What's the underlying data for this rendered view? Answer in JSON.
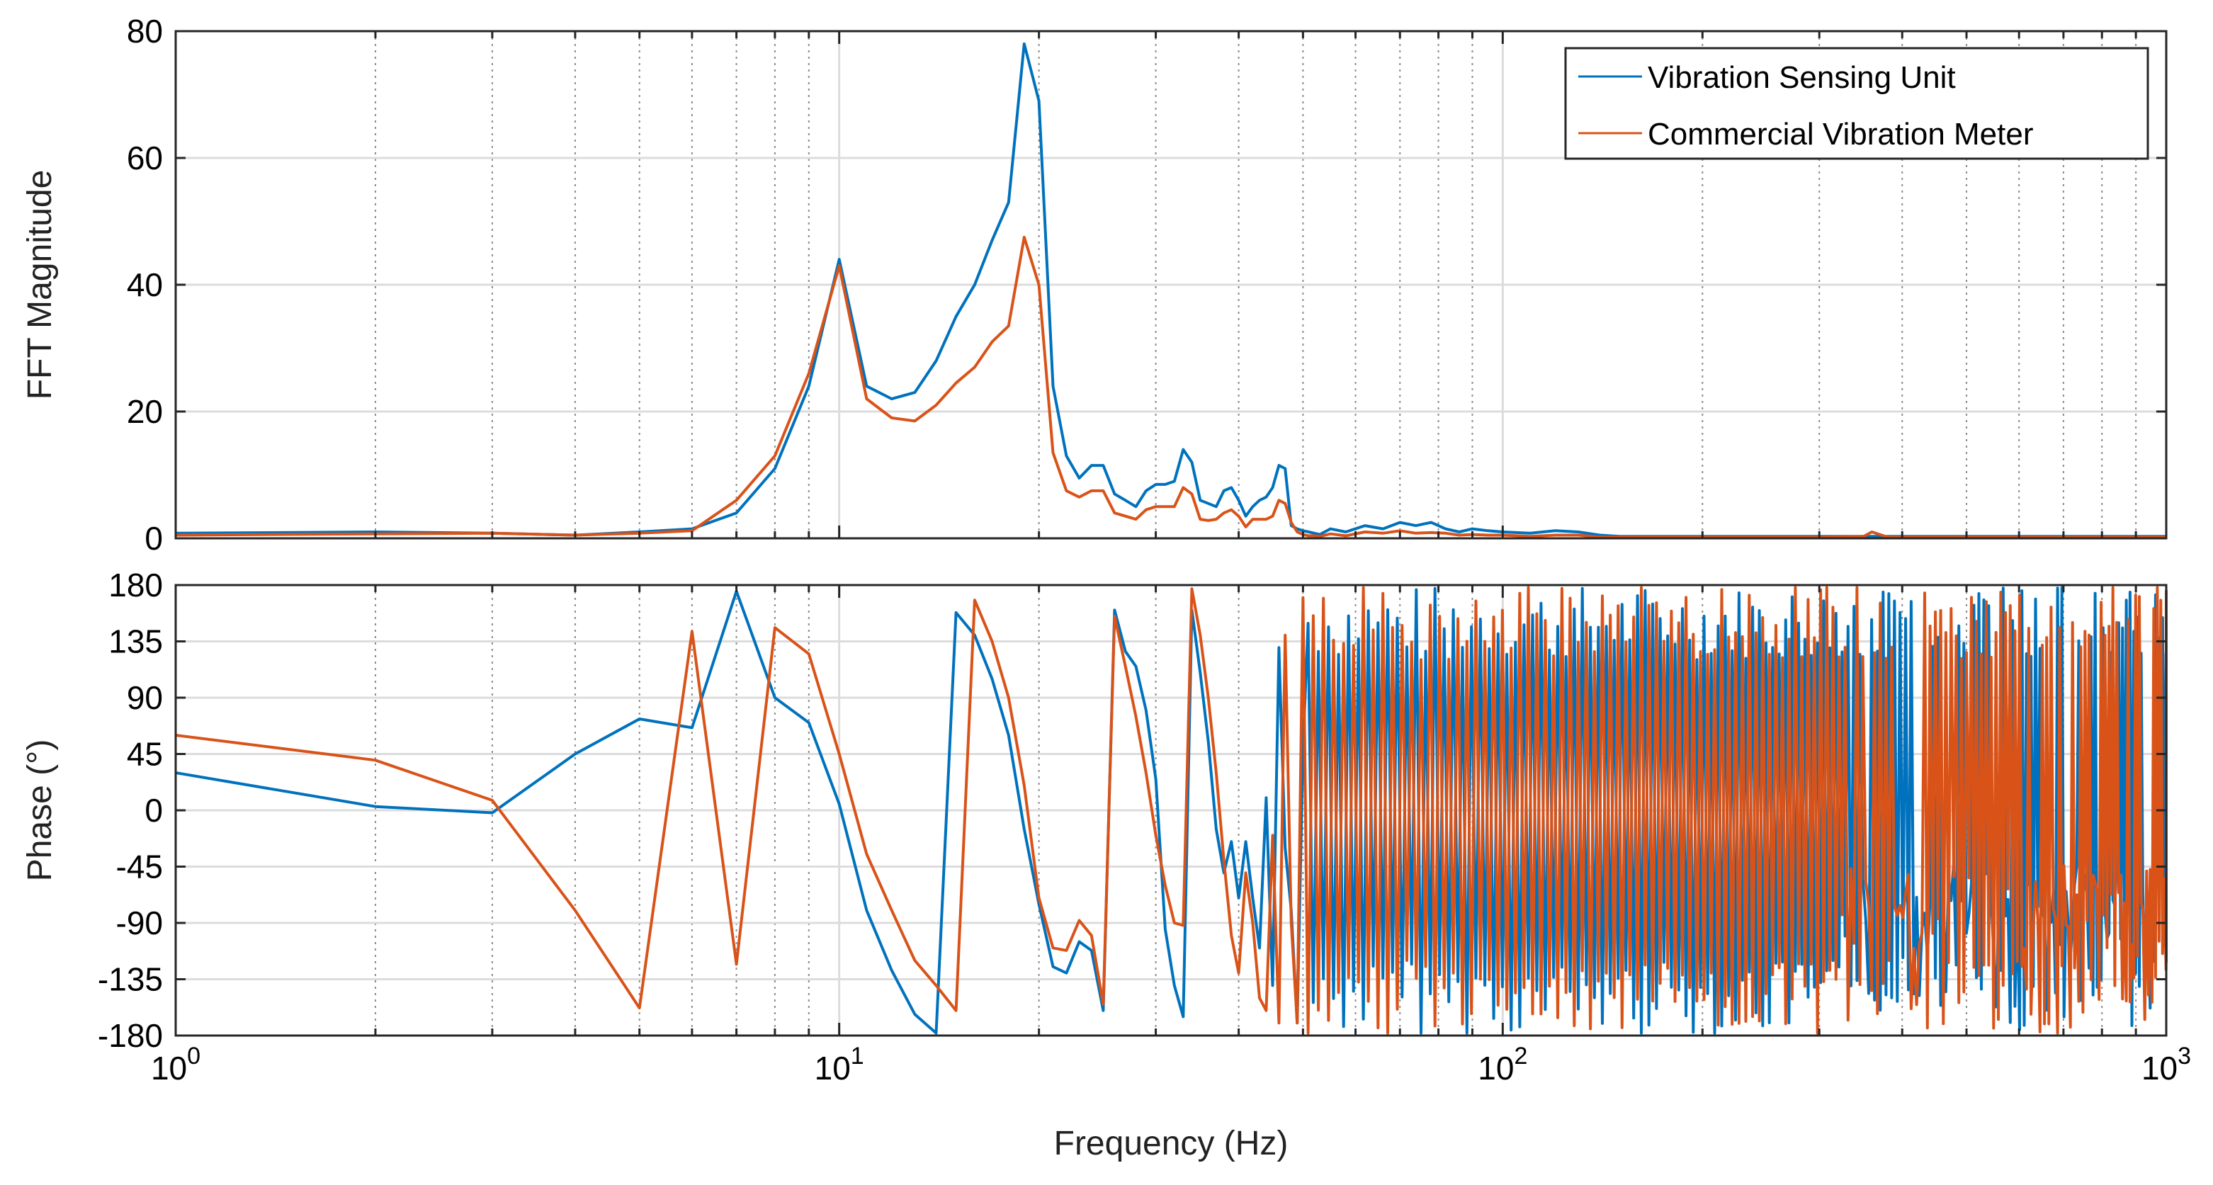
{
  "chart_data": [
    {
      "type": "line",
      "id": "magnitude",
      "xscale": "log",
      "xlim": [
        1,
        1000
      ],
      "ylim": [
        0,
        80
      ],
      "yticks": [
        0,
        20,
        40,
        60,
        80
      ],
      "ytick_labels": [
        "0",
        "20",
        "40",
        "60",
        "80"
      ],
      "xlabel": "",
      "ylabel": "FFT Magnitude",
      "grid": true,
      "legend_position": "top-right",
      "series": [
        {
          "name": "Vibration Sensing Unit",
          "color": "#0072BD",
          "x": [
            1,
            2,
            3,
            4,
            5,
            6,
            7,
            8,
            9,
            10,
            11,
            12,
            13,
            14,
            15,
            16,
            17,
            18,
            19,
            20,
            21,
            22,
            23,
            24,
            25,
            26,
            27,
            28,
            29,
            30,
            31,
            32,
            33,
            34,
            35,
            36,
            37,
            38,
            39,
            40,
            41,
            42,
            43,
            44,
            45,
            46,
            47,
            48,
            49,
            50,
            51,
            52,
            53,
            55,
            58,
            62,
            66,
            70,
            74,
            78,
            82,
            86,
            90,
            95,
            100,
            110,
            120,
            130,
            140,
            150,
            200,
            300,
            400,
            500,
            700,
            1000
          ],
          "y": [
            0.8,
            1.0,
            0.8,
            0.5,
            1.0,
            1.5,
            4,
            11,
            24,
            44,
            24,
            22,
            23,
            28,
            35,
            40,
            47,
            53,
            78,
            69,
            24,
            13,
            9.5,
            11.5,
            11.5,
            7,
            6,
            5,
            7.5,
            8.5,
            8.5,
            9,
            14,
            12,
            6,
            5.5,
            5,
            7.5,
            8,
            6,
            3.5,
            5,
            6,
            6.5,
            8,
            11.5,
            11,
            2,
            1.5,
            1.2,
            1.0,
            0.8,
            0.6,
            1.5,
            1.0,
            2.0,
            1.5,
            2.5,
            2.0,
            2.5,
            1.5,
            1.0,
            1.5,
            1.2,
            1.0,
            0.8,
            1.2,
            1.0,
            0.5,
            0.3,
            0.3,
            0.3,
            0.3,
            0.3,
            0.3,
            0.3
          ]
        },
        {
          "name": "Commercial Vibration Meter",
          "color": "#D95319",
          "x": [
            1,
            2,
            3,
            4,
            5,
            6,
            7,
            8,
            9,
            10,
            11,
            12,
            13,
            14,
            15,
            16,
            17,
            18,
            19,
            20,
            21,
            22,
            23,
            24,
            25,
            26,
            27,
            28,
            29,
            30,
            31,
            32,
            33,
            34,
            35,
            36,
            37,
            38,
            39,
            40,
            41,
            42,
            43,
            44,
            45,
            46,
            47,
            48,
            49,
            50,
            51,
            52,
            53,
            55,
            58,
            62,
            66,
            70,
            74,
            78,
            82,
            86,
            90,
            95,
            100,
            110,
            120,
            130,
            140,
            150,
            200,
            300,
            350,
            360,
            380,
            400,
            500,
            700,
            1000
          ],
          "y": [
            0.5,
            0.7,
            0.8,
            0.5,
            0.8,
            1.2,
            6,
            13,
            26,
            43,
            22,
            19,
            18.5,
            21,
            24.5,
            27,
            31,
            33.5,
            47.5,
            40,
            13.5,
            7.5,
            6.5,
            7.5,
            7.5,
            4,
            3.5,
            3,
            4.5,
            5,
            5,
            5,
            8,
            7,
            3,
            2.8,
            3,
            4,
            4.5,
            3.5,
            1.8,
            3,
            3,
            3,
            3.5,
            6,
            5.5,
            2.5,
            1,
            0.6,
            0.4,
            0.4,
            0.3,
            0.7,
            0.4,
            1.0,
            0.8,
            1.2,
            0.8,
            0.9,
            0.8,
            0.5,
            0.6,
            0.5,
            0.5,
            0.3,
            0.5,
            0.5,
            0.2,
            0.2,
            0.2,
            0.2,
            0.3,
            1.0,
            0.2,
            0.2,
            0.2,
            0.2,
            0.2
          ]
        }
      ]
    },
    {
      "type": "line",
      "id": "phase",
      "xscale": "log",
      "xlim": [
        1,
        1000
      ],
      "ylim": [
        -180,
        180
      ],
      "yticks": [
        -180,
        -135,
        -90,
        -45,
        0,
        45,
        90,
        135,
        180
      ],
      "ytick_labels": [
        "-180",
        "-135",
        "-90",
        "-45",
        "0",
        "45",
        "90",
        "135",
        "180"
      ],
      "xticks": [
        1,
        10,
        100,
        1000
      ],
      "xtick_bases": [
        "10",
        "10",
        "10",
        "10"
      ],
      "xtick_exponents": [
        "0",
        "1",
        "2",
        "3"
      ],
      "xlabel": "Frequency  (Hz)",
      "ylabel": "Phase (°)",
      "grid": true,
      "dense_region": {
        "from_hz": 50,
        "to_hz": 1000,
        "note": "rapidly alternating phase between -180 and 180"
      },
      "series": [
        {
          "name": "Vibration Sensing Unit",
          "color": "#0072BD",
          "x": [
            1,
            2,
            3,
            4,
            5,
            6,
            7,
            8,
            9,
            10,
            11,
            12,
            13,
            14,
            15,
            16,
            17,
            18,
            19,
            20,
            21,
            22,
            23,
            24,
            25,
            26,
            27,
            28,
            29,
            30,
            31,
            32,
            33,
            34,
            35,
            36,
            37,
            38,
            39,
            40,
            41,
            42,
            43,
            44,
            45,
            46,
            47,
            48,
            49,
            50
          ],
          "y": [
            30,
            3,
            -2,
            45,
            73,
            66,
            175,
            90,
            70,
            5,
            -80,
            -128,
            -163,
            -178,
            158,
            140,
            105,
            60,
            -15,
            -75,
            -125,
            -130,
            -105,
            -112,
            -160,
            160,
            127,
            115,
            80,
            25,
            -95,
            -140,
            -165,
            160,
            110,
            55,
            -15,
            -50,
            -25,
            -70,
            -25,
            -70,
            -110,
            10,
            -140,
            130,
            -30,
            -80,
            -170,
            50
          ]
        },
        {
          "name": "Commercial Vibration Meter",
          "color": "#D95319",
          "x": [
            1,
            2,
            3,
            4,
            5,
            6,
            7,
            8,
            9,
            10,
            11,
            12,
            13,
            14,
            15,
            16,
            17,
            18,
            19,
            20,
            21,
            22,
            23,
            24,
            25,
            26,
            27,
            28,
            29,
            30,
            31,
            32,
            33,
            34,
            35,
            36,
            37,
            38,
            39,
            40,
            41,
            42,
            43,
            44,
            45,
            46,
            47,
            48,
            49,
            50
          ],
          "y": [
            60,
            40,
            8,
            -80,
            -158,
            143,
            -123,
            146,
            125,
            45,
            -35,
            -80,
            -120,
            -140,
            -160,
            168,
            135,
            90,
            20,
            -70,
            -110,
            -112,
            -88,
            -100,
            -155,
            155,
            115,
            75,
            30,
            -20,
            -60,
            -90,
            -92,
            177,
            140,
            90,
            30,
            -40,
            -100,
            -130,
            -50,
            -90,
            -150,
            -160,
            -20,
            -170,
            140,
            -90,
            -170,
            170
          ]
        }
      ]
    }
  ],
  "legend": {
    "items": [
      {
        "label": "Vibration Sensing Unit",
        "color": "#0072BD"
      },
      {
        "label": "Commercial Vibration Meter",
        "color": "#D95319"
      }
    ]
  },
  "colors": {
    "axis": "#262626",
    "grid_major": "#dcdcdc",
    "grid_minor": "#8c8c8c",
    "series_blue": "#0072BD",
    "series_orange": "#D95319"
  }
}
